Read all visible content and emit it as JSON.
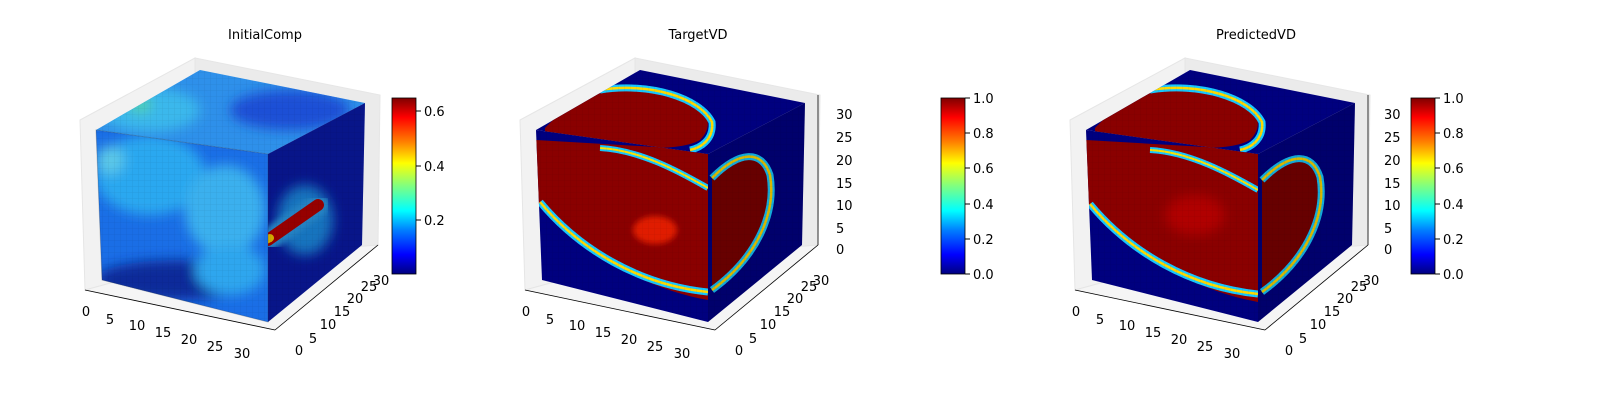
{
  "chart_data": [
    {
      "type": "heatmap",
      "subtype": "3d-voxel",
      "title": "InitialComp",
      "x_ticks": [
        "0",
        "5",
        "10",
        "15",
        "20",
        "25",
        "30"
      ],
      "y_ticks": [
        "0",
        "5",
        "10",
        "15",
        "20",
        "25",
        "30"
      ],
      "z_ticks": [],
      "colorbar": {
        "colormap": "jet",
        "range": [
          0.0,
          0.65
        ],
        "ticks": [
          "0.2",
          "0.4",
          "0.6"
        ]
      },
      "grid": true
    },
    {
      "type": "heatmap",
      "subtype": "3d-voxel",
      "title": "TargetVD",
      "x_ticks": [
        "0",
        "5",
        "10",
        "15",
        "20",
        "25",
        "30"
      ],
      "y_ticks": [
        "0",
        "5",
        "10",
        "15",
        "20",
        "25",
        "30"
      ],
      "z_ticks": [
        "0",
        "5",
        "10",
        "15",
        "20",
        "25",
        "30"
      ],
      "colorbar": {
        "colormap": "jet",
        "range": [
          0.0,
          1.0
        ],
        "ticks": [
          "0.0",
          "0.2",
          "0.4",
          "0.6",
          "0.8",
          "1.0"
        ]
      },
      "grid": true
    },
    {
      "type": "heatmap",
      "subtype": "3d-voxel",
      "title": "PredictedVD",
      "x_ticks": [
        "0",
        "5",
        "10",
        "15",
        "20",
        "25",
        "30"
      ],
      "y_ticks": [
        "0",
        "5",
        "10",
        "15",
        "20",
        "25",
        "30"
      ],
      "z_ticks": [
        "0",
        "5",
        "10",
        "15",
        "20",
        "25",
        "30"
      ],
      "colorbar": {
        "colormap": "jet",
        "range": [
          0.0,
          1.0
        ],
        "ticks": [
          "0.0",
          "0.2",
          "0.4",
          "0.6",
          "0.8",
          "1.0"
        ]
      },
      "grid": true
    }
  ],
  "colors": {
    "jet_stops": [
      "#00007f",
      "#0000ff",
      "#0080ff",
      "#00ffff",
      "#80ff80",
      "#ffff00",
      "#ff8000",
      "#ff0000",
      "#7f0000"
    ],
    "pane": "#f2f2f2",
    "grid": "#e0e0e0"
  }
}
